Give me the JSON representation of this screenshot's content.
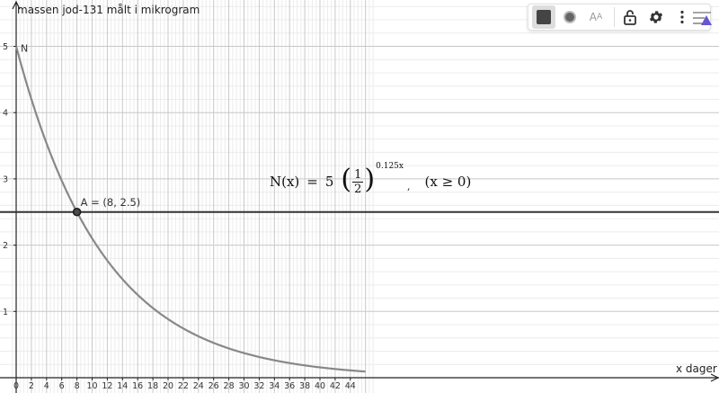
{
  "chart_data": {
    "type": "line",
    "ylabel": "massen jod-131 målt i mikrogram",
    "xlabel": "x dager",
    "xlim": [
      0,
      46
    ],
    "ylim": [
      0,
      5.45
    ],
    "x_ticks": [
      0,
      2,
      4,
      6,
      8,
      10,
      12,
      14,
      16,
      18,
      20,
      22,
      24,
      26,
      28,
      30,
      32,
      34,
      36,
      38,
      40,
      42,
      44
    ],
    "y_ticks": [
      1,
      2,
      3,
      4,
      5
    ],
    "grid": true,
    "functions": [
      {
        "name": "N",
        "expression": "5*(1/2)^(0.125x)",
        "domain": [
          0,
          46
        ],
        "color": "#888888"
      }
    ],
    "horizontal_lines": [
      {
        "y": 2.5,
        "color": "#333333"
      }
    ],
    "points": [
      {
        "name": "A",
        "x": 8,
        "y": 2.5,
        "label": "A = (8, 2.5)"
      }
    ],
    "formula": {
      "lhs": "N(x)",
      "equals": "=",
      "coef": "5",
      "numerator": "1",
      "denominator": "2",
      "exponent": "0.125x",
      "comma": ",",
      "condition": "(x ≥ 0)"
    }
  },
  "toolbar": {
    "items": [
      "color-style-button",
      "point-style-button",
      "text-style-button",
      "lock-button",
      "settings-button",
      "more-button"
    ],
    "aa_big": "A",
    "aa_small": "A",
    "accent": "#6557d2"
  }
}
